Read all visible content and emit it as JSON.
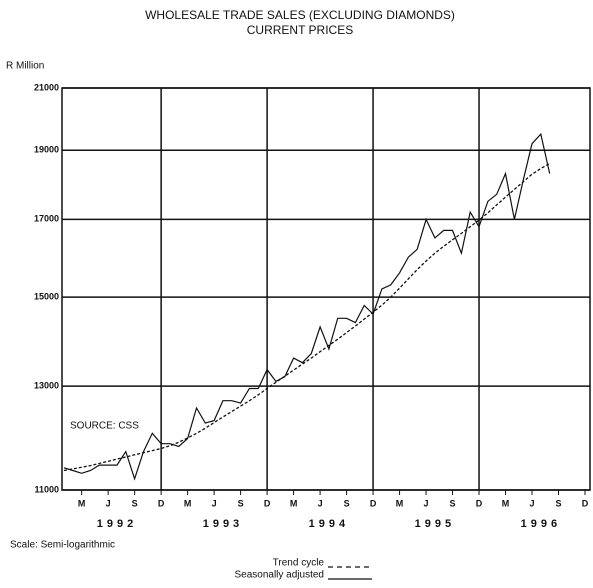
{
  "chart_data": {
    "type": "line",
    "title": "WHOLESALE TRADE SALES (EXCLUDING DIAMONDS)",
    "subtitle": "CURRENT PRICES",
    "y_label": "R Million",
    "source": "SOURCE: CSS",
    "scale_note": "Scale: Semi-logarithmic",
    "log_scale": true,
    "grid": true,
    "ylim": [
      11000,
      21000
    ],
    "yticks": [
      11000,
      13000,
      15000,
      17000,
      19000,
      21000
    ],
    "xlim": [
      "1992-01",
      "1996-12"
    ],
    "xgrid": [
      "1992-12",
      "1993-12",
      "1994-12",
      "1995-12"
    ],
    "xticks": [
      {
        "value": "1992-03",
        "label": "M"
      },
      {
        "value": "1992-06",
        "label": "J"
      },
      {
        "value": "1992-09",
        "label": "S"
      },
      {
        "value": "1992-12",
        "label": "D"
      },
      {
        "value": "1993-03",
        "label": "M"
      },
      {
        "value": "1993-06",
        "label": "J"
      },
      {
        "value": "1993-09",
        "label": "S"
      },
      {
        "value": "1993-12",
        "label": "D"
      },
      {
        "value": "1994-03",
        "label": "M"
      },
      {
        "value": "1994-06",
        "label": "J"
      },
      {
        "value": "1994-09",
        "label": "S"
      },
      {
        "value": "1994-12",
        "label": "D"
      },
      {
        "value": "1995-03",
        "label": "M"
      },
      {
        "value": "1995-06",
        "label": "J"
      },
      {
        "value": "1995-09",
        "label": "S"
      },
      {
        "value": "1995-12",
        "label": "D"
      },
      {
        "value": "1996-03",
        "label": "M"
      },
      {
        "value": "1996-06",
        "label": "J"
      },
      {
        "value": "1996-09",
        "label": "S"
      },
      {
        "value": "1996-12",
        "label": "D"
      }
    ],
    "year_labels": [
      {
        "value": "1992-07",
        "label": "1992"
      },
      {
        "value": "1993-07",
        "label": "1993"
      },
      {
        "value": "1994-07",
        "label": "1994"
      },
      {
        "value": "1995-07",
        "label": "1995"
      },
      {
        "value": "1996-07",
        "label": "1996"
      }
    ],
    "x": [
      "1992-01",
      "1992-02",
      "1992-03",
      "1992-04",
      "1992-05",
      "1992-06",
      "1992-07",
      "1992-08",
      "1992-09",
      "1992-10",
      "1992-11",
      "1992-12",
      "1993-01",
      "1993-02",
      "1993-03",
      "1993-04",
      "1993-05",
      "1993-06",
      "1993-07",
      "1993-08",
      "1993-09",
      "1993-10",
      "1993-11",
      "1993-12",
      "1994-01",
      "1994-02",
      "1994-03",
      "1994-04",
      "1994-05",
      "1994-06",
      "1994-07",
      "1994-08",
      "1994-09",
      "1994-10",
      "1994-11",
      "1994-12",
      "1995-01",
      "1995-02",
      "1995-03",
      "1995-04",
      "1995-05",
      "1995-06",
      "1995-07",
      "1995-08",
      "1995-09",
      "1995-10",
      "1995-11",
      "1995-12",
      "1996-01",
      "1996-02",
      "1996-03",
      "1996-04",
      "1996-05",
      "1996-06",
      "1996-07",
      "1996-08"
    ],
    "series": [
      {
        "name": "Trend cycle",
        "color": "#111111",
        "dash": true,
        "values": [
          11350,
          11380,
          11410,
          11440,
          11480,
          11520,
          11560,
          11600,
          11640,
          11680,
          11720,
          11760,
          11810,
          11880,
          11960,
          12050,
          12150,
          12260,
          12370,
          12480,
          12590,
          12700,
          12820,
          12950,
          13080,
          13210,
          13340,
          13470,
          13600,
          13740,
          13880,
          14020,
          14170,
          14320,
          14480,
          14640,
          14810,
          15000,
          15220,
          15450,
          15680,
          15900,
          16100,
          16280,
          16450,
          16620,
          16800,
          16980,
          17180,
          17400,
          17620,
          17840,
          18060,
          18280,
          18450,
          18600
        ]
      },
      {
        "name": "Seasonally adjusted",
        "color": "#111111",
        "dash": false,
        "values": [
          11400,
          11350,
          11300,
          11350,
          11450,
          11450,
          11450,
          11700,
          11200,
          11700,
          12050,
          11850,
          11850,
          11800,
          11950,
          12550,
          12250,
          12300,
          12700,
          12700,
          12650,
          12950,
          12950,
          13350,
          13100,
          13200,
          13600,
          13500,
          13700,
          14300,
          13800,
          14500,
          14500,
          14400,
          14800,
          14600,
          15200,
          15300,
          15600,
          16000,
          16200,
          17000,
          16500,
          16700,
          16700,
          16100,
          17200,
          16800,
          17500,
          17700,
          18300,
          17000,
          18100,
          19200,
          19500,
          18300
        ]
      }
    ]
  }
}
